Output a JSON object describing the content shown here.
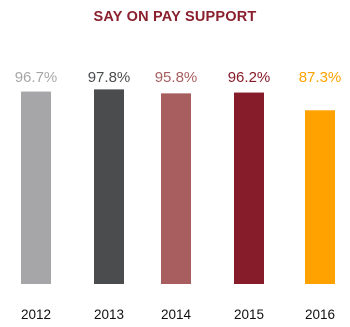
{
  "chart_data": {
    "type": "bar",
    "title": "SAY ON PAY SUPPORT",
    "xlabel": "",
    "ylabel": "",
    "categories": [
      "2012",
      "2013",
      "2014",
      "2015",
      "2016"
    ],
    "values": [
      96.7,
      97.8,
      95.8,
      96.2,
      87.3
    ],
    "value_labels": [
      "96.7%",
      "97.8%",
      "95.8%",
      "96.2%",
      "87.3%"
    ],
    "colors": [
      "#a6a6a8",
      "#4b4c4e",
      "#a85e5e",
      "#861b2a",
      "#ffa200"
    ],
    "label_colors": [
      "#a6a6a8",
      "#4b4c4e",
      "#a85e5e",
      "#861b2a",
      "#ffa200"
    ],
    "ylim": [
      0,
      100
    ],
    "grid": false,
    "legend": "none"
  }
}
